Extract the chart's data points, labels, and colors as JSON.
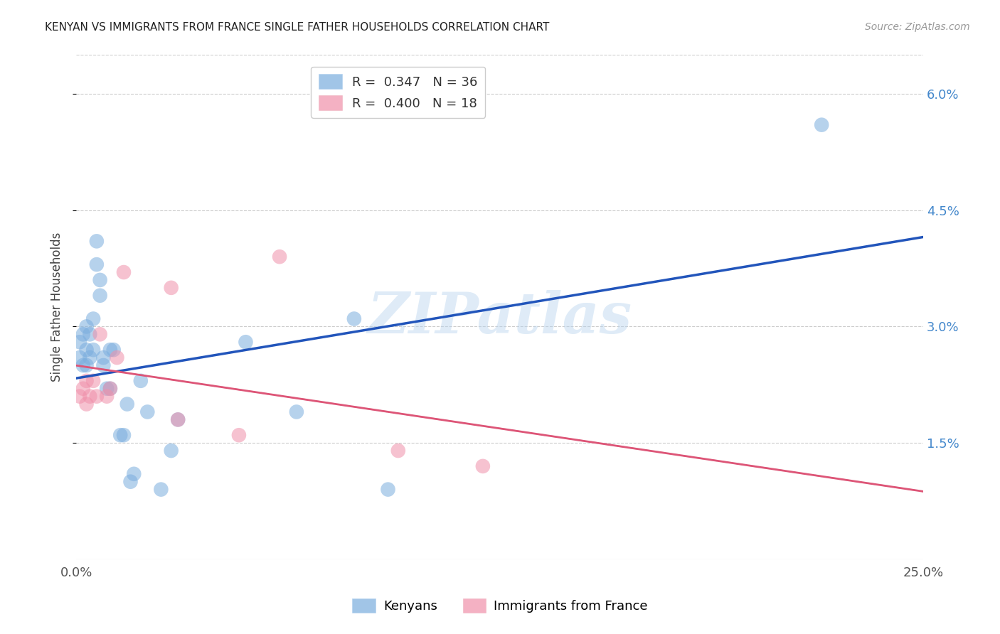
{
  "title": "KENYAN VS IMMIGRANTS FROM FRANCE SINGLE FATHER HOUSEHOLDS CORRELATION CHART",
  "source": "Source: ZipAtlas.com",
  "ylabel": "Single Father Households",
  "xlim": [
    0.0,
    0.25
  ],
  "ylim": [
    0.0,
    0.065
  ],
  "yticks": [
    0.015,
    0.03,
    0.045,
    0.06
  ],
  "ytick_labels": [
    "1.5%",
    "3.0%",
    "4.5%",
    "6.0%"
  ],
  "xticks": [
    0.0,
    0.05,
    0.1,
    0.15,
    0.2,
    0.25
  ],
  "xtick_labels": [
    "0.0%",
    "",
    "",
    "",
    "",
    "25.0%"
  ],
  "legend_entry1": "R =  0.347   N = 36",
  "legend_entry2": "R =  0.400   N = 18",
  "legend_label1": "Kenyans",
  "legend_label2": "Immigrants from France",
  "blue_color": "#7aadde",
  "pink_color": "#f090aa",
  "blue_line_color": "#2255bb",
  "pink_line_color": "#dd5577",
  "blue_tick_color": "#4488cc",
  "kenyan_x": [
    0.001,
    0.001,
    0.002,
    0.002,
    0.003,
    0.003,
    0.003,
    0.004,
    0.004,
    0.005,
    0.005,
    0.006,
    0.006,
    0.007,
    0.007,
    0.008,
    0.008,
    0.009,
    0.01,
    0.01,
    0.011,
    0.013,
    0.014,
    0.015,
    0.016,
    0.017,
    0.019,
    0.021,
    0.025,
    0.028,
    0.03,
    0.05,
    0.065,
    0.082,
    0.092,
    0.22
  ],
  "kenyan_y": [
    0.028,
    0.026,
    0.029,
    0.025,
    0.03,
    0.027,
    0.025,
    0.029,
    0.026,
    0.031,
    0.027,
    0.041,
    0.038,
    0.036,
    0.034,
    0.026,
    0.025,
    0.022,
    0.027,
    0.022,
    0.027,
    0.016,
    0.016,
    0.02,
    0.01,
    0.011,
    0.023,
    0.019,
    0.009,
    0.014,
    0.018,
    0.028,
    0.019,
    0.031,
    0.009,
    0.056
  ],
  "france_x": [
    0.001,
    0.002,
    0.003,
    0.003,
    0.004,
    0.005,
    0.006,
    0.007,
    0.009,
    0.01,
    0.012,
    0.014,
    0.028,
    0.03,
    0.048,
    0.06,
    0.095,
    0.12
  ],
  "france_y": [
    0.021,
    0.022,
    0.02,
    0.023,
    0.021,
    0.023,
    0.021,
    0.029,
    0.021,
    0.022,
    0.026,
    0.037,
    0.035,
    0.018,
    0.016,
    0.039,
    0.014,
    0.012
  ],
  "watermark_text": "ZIPatlas",
  "background_color": "#ffffff",
  "grid_color": "#cccccc"
}
